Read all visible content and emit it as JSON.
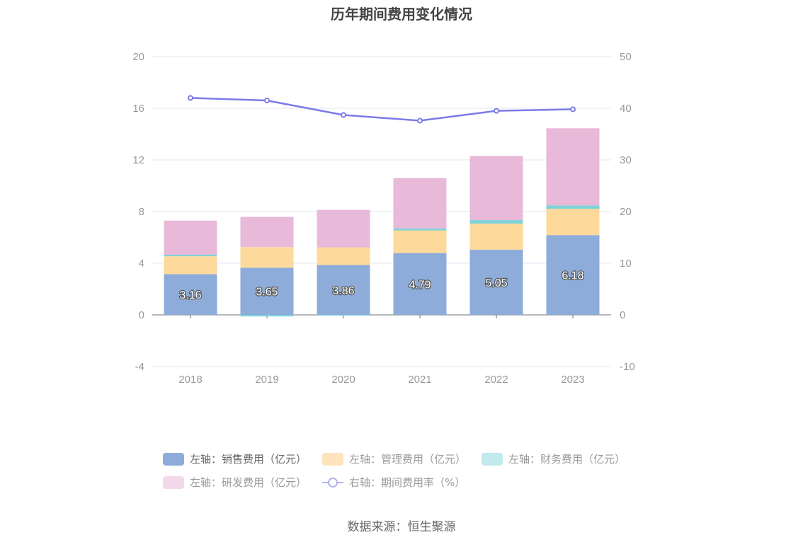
{
  "title": "历年期间费用变化情况",
  "source": "数据来源：恒生聚源",
  "chart_data": {
    "type": "bar",
    "title": "历年期间费用变化情况",
    "categories": [
      "2018",
      "2019",
      "2020",
      "2021",
      "2022",
      "2023"
    ],
    "left_axis": {
      "ticks": [
        "20",
        "16",
        "12",
        "8",
        "4",
        "0",
        "-4"
      ],
      "range": [
        -4,
        20
      ]
    },
    "right_axis": {
      "ticks": [
        "50",
        "40",
        "30",
        "20",
        "10",
        "0",
        "-10"
      ],
      "range": [
        -10,
        50
      ]
    },
    "stack_series": [
      {
        "name": "左轴：销售费用（亿元）",
        "color": "#8eacd9",
        "values": [
          3.16,
          3.65,
          3.86,
          4.79,
          5.05,
          6.18
        ],
        "labels": [
          "3.16",
          "3.65",
          "3.86",
          "4.79",
          "5.05",
          "6.18"
        ]
      },
      {
        "name": "左轴：管理费用（亿元）",
        "color": "#fdd99b",
        "values": [
          1.38,
          1.6,
          1.37,
          1.75,
          2.02,
          2.04
        ]
      },
      {
        "name": "左轴：财务费用（亿元）",
        "color": "#7dd3d9",
        "values": [
          0.12,
          -0.12,
          -0.03,
          0.15,
          0.27,
          0.25
        ]
      },
      {
        "name": "左轴：研发费用（亿元）",
        "color": "#e8b9d9",
        "values": [
          2.64,
          2.34,
          2.9,
          3.9,
          4.96,
          5.98
        ]
      }
    ],
    "line_series": {
      "name": "右轴：期间费用率（%）",
      "color": "#7b7be8",
      "values": [
        42.0,
        41.5,
        38.7,
        37.6,
        39.5,
        39.8
      ]
    },
    "legend_position": "bottom",
    "grid": true
  },
  "legend": [
    {
      "label": "左轴：销售费用（亿元）",
      "color": "#8eacd9"
    },
    {
      "label": "左轴：管理费用（亿元）",
      "color": "#fde4bc"
    },
    {
      "label": "左轴：财务费用（亿元）",
      "color": "#c2e9ec"
    },
    {
      "label": "左轴：研发费用（亿元）",
      "color": "#f3d8ea"
    },
    {
      "label": "右轴：期间费用率（%）",
      "color": "#b3b3f0"
    }
  ]
}
